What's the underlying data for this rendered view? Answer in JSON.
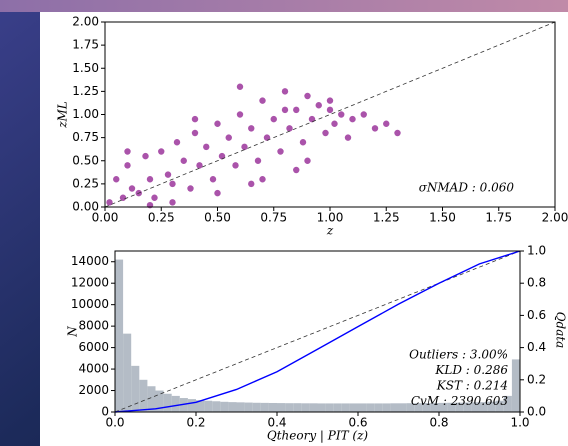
{
  "chart_data": [
    {
      "type": "scatter",
      "xlabel": "z",
      "ylabel": "zML",
      "annotation": "σNMAD : 0.060",
      "color": "#8e1a8e",
      "xlim": [
        0,
        2
      ],
      "ylim": [
        0,
        2
      ],
      "xticks": [
        {
          "value": 0,
          "label": "0.00"
        },
        {
          "value": 0.25,
          "label": "0.25"
        },
        {
          "value": 0.5,
          "label": "0.50"
        },
        {
          "value": 0.75,
          "label": "0.75"
        },
        {
          "value": 1,
          "label": "1.00"
        },
        {
          "value": 1.25,
          "label": "1.25"
        },
        {
          "value": 1.5,
          "label": "1.50"
        },
        {
          "value": 1.75,
          "label": "1.75"
        },
        {
          "value": 2,
          "label": "2.00"
        }
      ],
      "yticks": [
        {
          "value": 0,
          "label": "0.00"
        },
        {
          "value": 0.25,
          "label": "0.25"
        },
        {
          "value": 0.5,
          "label": "0.50"
        },
        {
          "value": 0.75,
          "label": "0.75"
        },
        {
          "value": 1,
          "label": "1.00"
        },
        {
          "value": 1.25,
          "label": "1.25"
        },
        {
          "value": 1.5,
          "label": "1.50"
        },
        {
          "value": 1.75,
          "label": "1.75"
        },
        {
          "value": 2,
          "label": "2.00"
        }
      ],
      "x": [
        0.02,
        0.05,
        0.08,
        0.1,
        0.12,
        0.15,
        0.18,
        0.2,
        0.22,
        0.25,
        0.28,
        0.3,
        0.32,
        0.35,
        0.38,
        0.4,
        0.42,
        0.45,
        0.48,
        0.5,
        0.52,
        0.55,
        0.58,
        0.6,
        0.62,
        0.65,
        0.68,
        0.7,
        0.72,
        0.75,
        0.78,
        0.8,
        0.82,
        0.85,
        0.88,
        0.9,
        0.92,
        0.95,
        0.98,
        1.0,
        1.02,
        1.05,
        1.08,
        1.1,
        1.15,
        1.2,
        1.25,
        1.3,
        0.3,
        0.5,
        0.7,
        0.9,
        0.6,
        0.4,
        0.8,
        1.0,
        0.2,
        0.1,
        0.65,
        0.85
      ],
      "values": [
        0.05,
        0.3,
        0.1,
        0.45,
        0.2,
        0.15,
        0.55,
        0.3,
        0.1,
        0.6,
        0.35,
        0.25,
        0.7,
        0.5,
        0.2,
        0.8,
        0.45,
        0.65,
        0.3,
        0.9,
        0.55,
        0.75,
        0.45,
        1.0,
        0.65,
        0.85,
        0.5,
        1.15,
        0.75,
        0.95,
        0.6,
        1.25,
        0.85,
        1.05,
        0.7,
        1.2,
        0.95,
        1.1,
        0.8,
        1.05,
        0.9,
        1.0,
        0.75,
        0.95,
        1.0,
        0.85,
        0.9,
        0.8,
        0.05,
        0.15,
        0.3,
        0.5,
        1.3,
        0.95,
        1.05,
        1.15,
        0.02,
        0.6,
        0.25,
        0.4
      ]
    },
    {
      "type": "histogram",
      "xlabel": "Qtheory | PIT (z)",
      "ylabel": "N",
      "y2label": "Qdata",
      "color": "#b4bcc6",
      "annotations": [
        "Outliers : 3.00%",
        "KLD : 0.286",
        "KST : 0.214",
        "CvM : 2390.603"
      ],
      "xlim": [
        0,
        1
      ],
      "ylim": [
        0,
        15000
      ],
      "y2lim": [
        0,
        1
      ],
      "xticks": [
        {
          "value": 0,
          "label": "0.0"
        },
        {
          "value": 0.2,
          "label": "0.2"
        },
        {
          "value": 0.4,
          "label": "0.4"
        },
        {
          "value": 0.6,
          "label": "0.6"
        },
        {
          "value": 0.8,
          "label": "0.8"
        },
        {
          "value": 1,
          "label": "1.0"
        }
      ],
      "yticks": [
        0,
        2000,
        4000,
        6000,
        8000,
        10000,
        12000,
        14000
      ],
      "y2ticks": [
        {
          "value": 0,
          "label": "0.0"
        },
        {
          "value": 0.2,
          "label": "0.2"
        },
        {
          "value": 0.4,
          "label": "0.4"
        },
        {
          "value": 0.6,
          "label": "0.6"
        },
        {
          "value": 0.8,
          "label": "0.8"
        },
        {
          "value": 1,
          "label": "1.0"
        }
      ],
      "bins": [
        0,
        0.02,
        0.04,
        0.06,
        0.08,
        0.1,
        0.12,
        0.14,
        0.16,
        0.18,
        0.2,
        0.22,
        0.24,
        0.26,
        0.28,
        0.3,
        0.32,
        0.34,
        0.36,
        0.38,
        0.4,
        0.42,
        0.44,
        0.46,
        0.48,
        0.5,
        0.52,
        0.54,
        0.56,
        0.58,
        0.6,
        0.62,
        0.64,
        0.66,
        0.68,
        0.7,
        0.72,
        0.74,
        0.76,
        0.78,
        0.8,
        0.82,
        0.84,
        0.86,
        0.88,
        0.9,
        0.92,
        0.94,
        0.96,
        0.98,
        1.0
      ],
      "values": [
        14200,
        7300,
        4300,
        3000,
        2400,
        2000,
        1700,
        1500,
        1300,
        1200,
        1100,
        1050,
        1000,
        950,
        920,
        900,
        880,
        860,
        850,
        840,
        830,
        820,
        820,
        810,
        810,
        800,
        800,
        800,
        800,
        800,
        800,
        800,
        800,
        800,
        810,
        810,
        820,
        820,
        830,
        840,
        850,
        860,
        870,
        880,
        900,
        920,
        960,
        1050,
        1500,
        4900
      ],
      "series": [
        {
          "axis": "y2",
          "color": "#0000ff",
          "x": [
            0,
            0.1,
            0.2,
            0.3,
            0.4,
            0.5,
            0.6,
            0.7,
            0.8,
            0.9,
            1.0
          ],
          "values": [
            0,
            0.02,
            0.06,
            0.14,
            0.25,
            0.39,
            0.53,
            0.67,
            0.8,
            0.92,
            1.0
          ]
        }
      ]
    }
  ]
}
